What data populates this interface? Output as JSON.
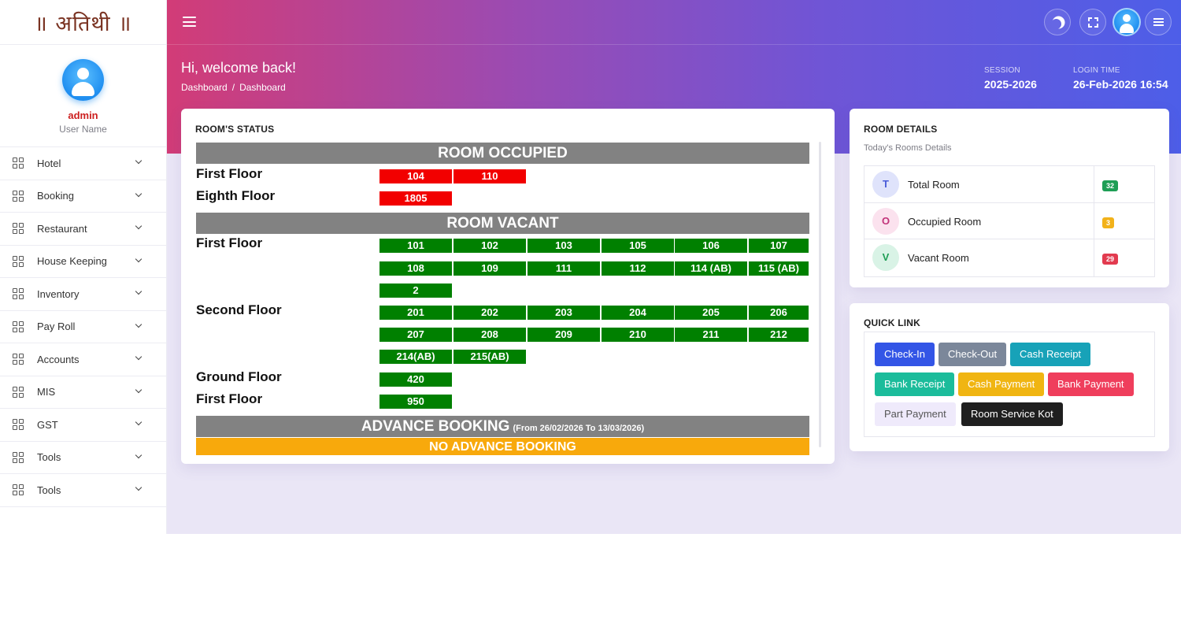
{
  "sidebar": {
    "logo_text": "॥ अतिथी ॥",
    "user": {
      "name": "admin",
      "role": "User Name"
    },
    "items": [
      {
        "label": "Hotel"
      },
      {
        "label": "Booking"
      },
      {
        "label": "Restaurant"
      },
      {
        "label": "House Keeping"
      },
      {
        "label": "Inventory"
      },
      {
        "label": "Pay Roll"
      },
      {
        "label": "Accounts"
      },
      {
        "label": "MIS"
      },
      {
        "label": "GST"
      },
      {
        "label": "Tools"
      },
      {
        "label": "Tools"
      }
    ]
  },
  "topbar": {
    "icons": [
      "menu-icon",
      "moon-icon",
      "fullscreen-icon",
      "user-avatar",
      "menu-icon"
    ]
  },
  "header": {
    "welcome": "Hi, welcome back!",
    "breadcrumb": [
      "Dashboard",
      "Dashboard"
    ],
    "breadcrumb_sep": "/",
    "session_label": "SESSION",
    "session_value": "2025-2026",
    "login_label": "LOGIN TIME",
    "login_value": "26-Feb-2026 16:54"
  },
  "room_status": {
    "title": "ROOM'S STATUS",
    "occupied_heading": "ROOM OCCUPIED",
    "occupied_floors": [
      {
        "floor": "First Floor",
        "rooms": [
          "104",
          "110"
        ]
      },
      {
        "floor": "Eighth Floor",
        "rooms": [
          "1805"
        ]
      }
    ],
    "vacant_heading": "ROOM VACANT",
    "vacant_floors": [
      {
        "floor": "First Floor",
        "rooms": [
          "101",
          "102",
          "103",
          "105",
          "106",
          "107",
          "108",
          "109",
          "111",
          "112",
          "114 (AB)",
          "115 (AB)",
          "2"
        ]
      },
      {
        "floor": "Second Floor",
        "rooms": [
          "201",
          "202",
          "203",
          "204",
          "205",
          "206",
          "207",
          "208",
          "209",
          "210",
          "211",
          "212",
          "214(AB)",
          "215(AB)"
        ]
      },
      {
        "floor": "Ground Floor",
        "rooms": [
          "420"
        ]
      },
      {
        "floor": "First Floor",
        "rooms": [
          "950"
        ]
      }
    ],
    "advance_heading": "ADVANCE BOOKING",
    "advance_range": "(From 26/02/2026 To 13/03/2026)",
    "no_advance": "NO ADVANCE BOOKING",
    "colors": {
      "occupied": "#f20000",
      "vacant": "#008000",
      "heading": "#828282",
      "no_advance": "#f8a90c"
    }
  },
  "room_details": {
    "title": "ROOM DETAILS",
    "subtitle": "Today's Rooms Details",
    "rows": [
      {
        "letter": "T",
        "label": "Total Room",
        "count": "32",
        "badge_color": "#1e9e55",
        "circle_bg": "#dfe3fb",
        "letter_color": "#4a5bd8"
      },
      {
        "letter": "O",
        "label": "Occupied Room",
        "count": "3",
        "badge_color": "#f2b21a",
        "circle_bg": "#fbe2ee",
        "letter_color": "#c2337a"
      },
      {
        "letter": "V",
        "label": "Vacant Room",
        "count": "29",
        "badge_color": "#e23b4f",
        "circle_bg": "#d9f3e6",
        "letter_color": "#1e9e55"
      }
    ]
  },
  "quick_link": {
    "title": "QUICK LINK",
    "buttons": [
      {
        "label": "Check-In",
        "color": "#3355e6",
        "text_color": "#ffffff"
      },
      {
        "label": "Check-Out",
        "color": "#7b879a",
        "text_color": "#ffffff"
      },
      {
        "label": "Cash Receipt",
        "color": "#17a2b8",
        "text_color": "#ffffff"
      },
      {
        "label": "Bank Receipt",
        "color": "#1bbc9b",
        "text_color": "#ffffff"
      },
      {
        "label": "Cash Payment",
        "color": "#f0b512",
        "text_color": "#ffffff"
      },
      {
        "label": "Bank Payment",
        "color": "#ef3e5c",
        "text_color": "#ffffff"
      },
      {
        "label": "Part Payment",
        "color": "#efeafb",
        "text_color": "#555555"
      },
      {
        "label": "Room Service Kot",
        "color": "#1f1f1f",
        "text_color": "#ffffff"
      }
    ]
  }
}
